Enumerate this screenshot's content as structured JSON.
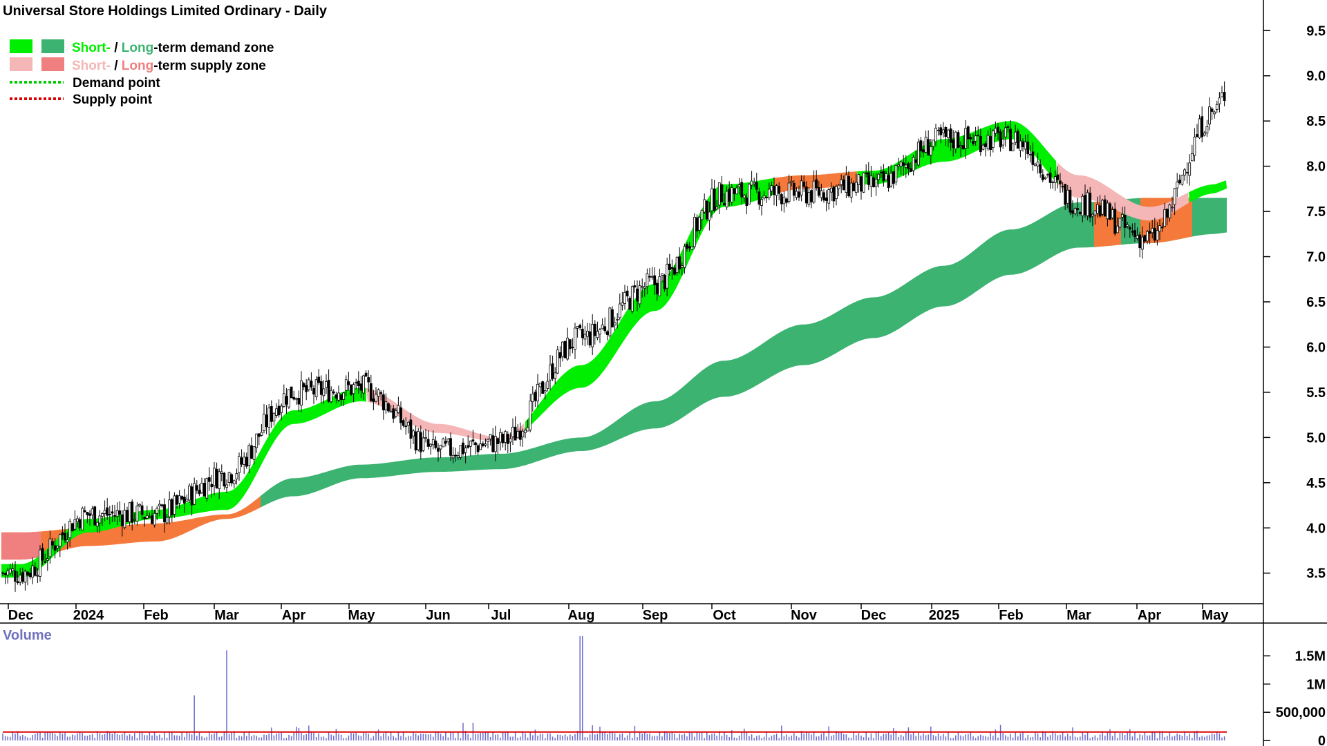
{
  "title": "Universal Store Holdings Limited Ordinary - Daily",
  "legend": {
    "demand_prefix_short": "Short-",
    "demand_sep": " / ",
    "demand_long": "Long",
    "demand_suffix": "-term demand zone",
    "supply_prefix_short": "Short-",
    "supply_sep": " / ",
    "supply_long": "Long",
    "supply_suffix": "-term supply zone",
    "demand_point": "Demand point",
    "supply_point": "Supply point"
  },
  "volume_label": "Volume",
  "colors": {
    "short_demand": "#00ee00",
    "long_demand": "#3cb371",
    "short_supply": "#f4b6b6",
    "long_supply": "#f08080",
    "long_supply_orange": "#f4793a",
    "demand_point": "#00cc00",
    "supply_point": "#dd0000",
    "volume_bar": "#6a6ad0",
    "volume_avg": "#dd0000"
  },
  "chart_data": [
    {
      "type": "candlestick",
      "title": "Universal Store Holdings Limited Ordinary - Daily",
      "x_ticks": [
        "Dec",
        "2024",
        "Feb",
        "Mar",
        "Apr",
        "May",
        "Jun",
        "Jul",
        "Aug",
        "Sep",
        "Oct",
        "Nov",
        "Dec",
        "2025",
        "Feb",
        "Mar",
        "Apr",
        "May"
      ],
      "y_ticks": [
        3.5,
        4.0,
        4.5,
        5.0,
        5.5,
        6.0,
        6.5,
        7.0,
        7.5,
        8.0,
        8.5,
        9.0,
        9.5
      ],
      "y_tick_labels": [
        "3.5",
        "4.0",
        "4.5",
        "5.0",
        "5.5",
        "6.0",
        "6.5",
        "7.0",
        "7.5",
        "8.0",
        "8.5",
        "9.0",
        "9.5"
      ],
      "ylim": [
        3.2,
        9.8
      ],
      "close_series": {
        "x": [
          "Dec",
          "2024",
          "Feb",
          "Mar",
          "Apr",
          "May",
          "Jun",
          "Jul",
          "Aug",
          "Sep",
          "Oct",
          "Nov",
          "Dec",
          "2025",
          "Feb",
          "Mar",
          "Apr",
          "May"
        ],
        "values": [
          3.5,
          4.15,
          4.15,
          4.6,
          5.5,
          5.55,
          4.85,
          4.95,
          6.1,
          6.7,
          7.7,
          7.7,
          7.8,
          8.3,
          8.3,
          7.6,
          7.2,
          8.6
        ]
      },
      "short_term_zone": {
        "upper": [
          3.6,
          4.1,
          4.2,
          4.4,
          5.3,
          5.55,
          5.15,
          5.0,
          5.8,
          6.7,
          7.8,
          7.9,
          7.95,
          8.3,
          8.5,
          7.9,
          7.55,
          7.8
        ],
        "lower": [
          3.45,
          3.95,
          4.1,
          4.2,
          5.15,
          5.4,
          5.05,
          4.95,
          5.55,
          6.4,
          7.55,
          7.75,
          7.8,
          8.05,
          8.3,
          7.65,
          7.4,
          7.7
        ]
      },
      "long_term_zone": {
        "upper": [
          3.95,
          4.0,
          4.05,
          4.15,
          4.55,
          4.7,
          4.78,
          4.82,
          5.0,
          5.4,
          5.85,
          6.25,
          6.55,
          6.9,
          7.3,
          7.6,
          7.65,
          7.65
        ],
        "lower": [
          3.65,
          3.8,
          3.85,
          4.1,
          4.35,
          4.55,
          4.62,
          4.65,
          4.85,
          5.1,
          5.45,
          5.8,
          6.1,
          6.45,
          6.8,
          7.1,
          7.15,
          7.25
        ]
      },
      "ylabel": ""
    },
    {
      "type": "bar",
      "title": "Volume",
      "y_ticks": [
        0,
        500000,
        1000000,
        1500000
      ],
      "y_tick_labels": [
        "0",
        "500,000",
        "1M",
        "1.5M"
      ],
      "ylim": [
        0,
        1800000
      ],
      "average_line": 150000,
      "notable_spikes": [
        {
          "x": "Feb",
          "value": 800000
        },
        {
          "x": "Mar",
          "value": 1600000
        },
        {
          "x": "Aug",
          "value": 1850000
        }
      ]
    }
  ]
}
